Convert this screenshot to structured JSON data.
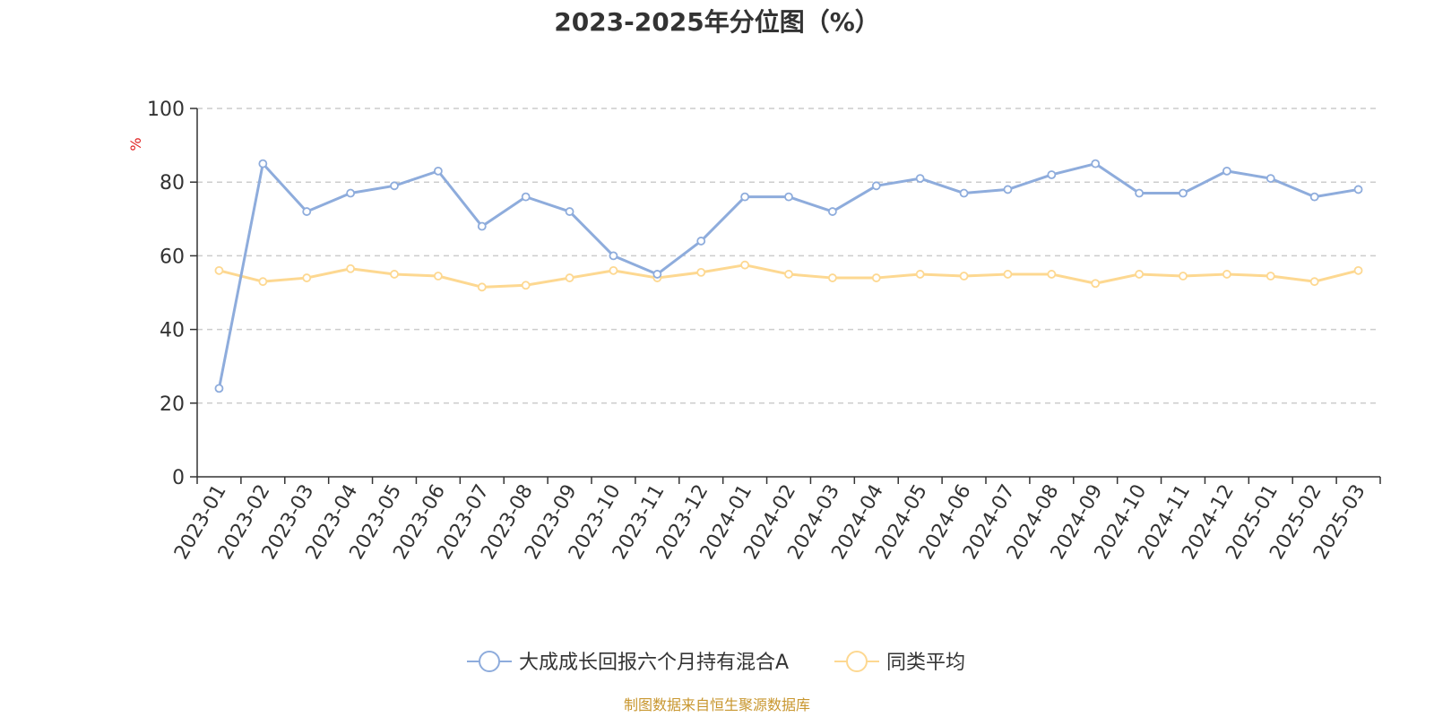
{
  "chart_data": {
    "type": "line",
    "title": "2023-2025年分位图（%）",
    "ylabel": "%",
    "xlabel": "",
    "ylim": [
      0,
      100
    ],
    "yticks": [
      0,
      20,
      40,
      60,
      80,
      100
    ],
    "grid": true,
    "legend_position": "bottom",
    "categories": [
      "2023-01",
      "2023-02",
      "2023-03",
      "2023-04",
      "2023-05",
      "2023-06",
      "2023-07",
      "2023-08",
      "2023-09",
      "2023-10",
      "2023-11",
      "2023-12",
      "2024-01",
      "2024-02",
      "2024-03",
      "2024-04",
      "2024-05",
      "2024-06",
      "2024-07",
      "2024-08",
      "2024-09",
      "2024-10",
      "2024-11",
      "2024-12",
      "2025-01",
      "2025-02",
      "2025-03"
    ],
    "series": [
      {
        "name": "大成成长回报六个月持有混合A",
        "color": "#8eacdc",
        "values": [
          24,
          85,
          72,
          77,
          79,
          83,
          68,
          76,
          72,
          60,
          55,
          64,
          76,
          76,
          72,
          79,
          81,
          77,
          78,
          82,
          85,
          77,
          77,
          83,
          81,
          76,
          78
        ]
      },
      {
        "name": "同类平均",
        "color": "#fdd891",
        "values": [
          56,
          53,
          54,
          56.5,
          55,
          54.5,
          51.5,
          52,
          54,
          56,
          54,
          55.5,
          57.5,
          55,
          54,
          54,
          55,
          54.5,
          55,
          55,
          52.5,
          55,
          54.5,
          55,
          54.5,
          53,
          56
        ]
      }
    ]
  },
  "footer": {
    "source": "制图数据来自恒生聚源数据库"
  }
}
